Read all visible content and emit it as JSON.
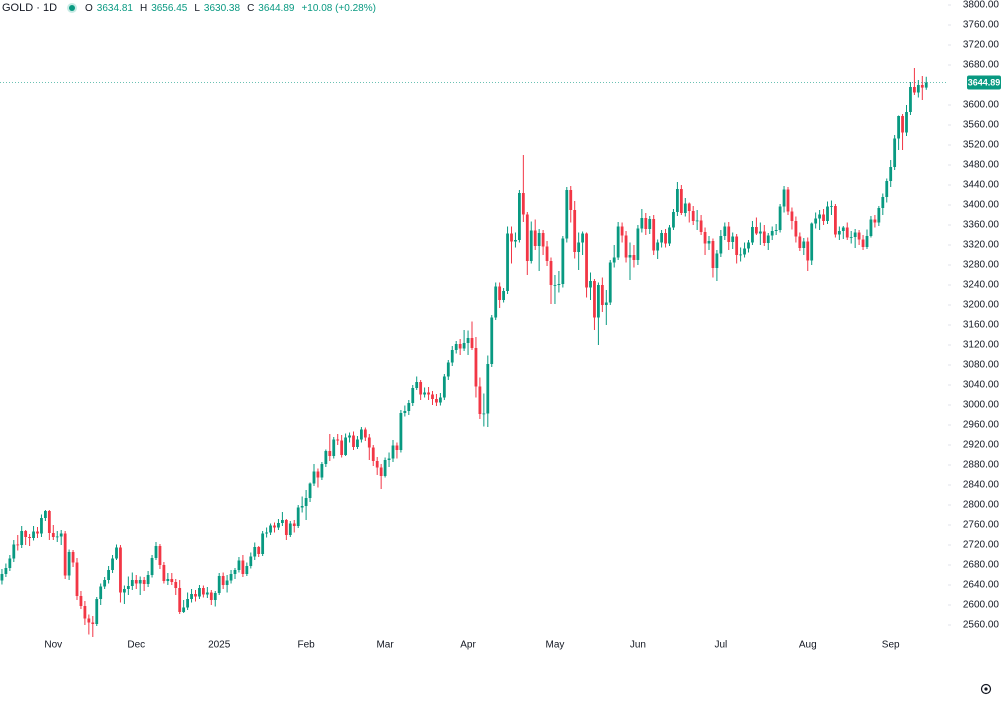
{
  "chart_data": {
    "type": "candlestick",
    "symbol": "GOLD · 1D",
    "ohlc_labels": [
      "O",
      "H",
      "L",
      "C"
    ],
    "change": "+10.08 (+0.28%)",
    "up_color": "#089981",
    "down_color": "#f23645",
    "ylim": [
      2540,
      3800
    ],
    "yticks": [
      {
        "value": 3800,
        "label": "3800.00"
      },
      {
        "value": 3760,
        "label": "3760.00"
      },
      {
        "value": 3720,
        "label": "3720.00"
      },
      {
        "value": 3680,
        "label": "3680.00"
      },
      {
        "value": 3600,
        "label": "3600.00"
      },
      {
        "value": 3560,
        "label": "3560.00"
      },
      {
        "value": 3520,
        "label": "3520.00"
      },
      {
        "value": 3480,
        "label": "3480.00"
      },
      {
        "value": 3440,
        "label": "3440.00"
      },
      {
        "value": 3400,
        "label": "3400.00"
      },
      {
        "value": 3360,
        "label": "3360.00"
      },
      {
        "value": 3320,
        "label": "3320.00"
      },
      {
        "value": 3280,
        "label": "3280.00"
      },
      {
        "value": 3240,
        "label": "3240.00"
      },
      {
        "value": 3200,
        "label": "3200.00"
      },
      {
        "value": 3160,
        "label": "3160.00"
      },
      {
        "value": 3120,
        "label": "3120.00"
      },
      {
        "value": 3080,
        "label": "3080.00"
      },
      {
        "value": 3040,
        "label": "3040.00"
      },
      {
        "value": 3000,
        "label": "3000.00"
      },
      {
        "value": 2960,
        "label": "2960.00"
      },
      {
        "value": 2920,
        "label": "2920.00"
      },
      {
        "value": 2880,
        "label": "2880.00"
      },
      {
        "value": 2840,
        "label": "2840.00"
      },
      {
        "value": 2800,
        "label": "2800.00"
      },
      {
        "value": 2760,
        "label": "2760.00"
      },
      {
        "value": 2720,
        "label": "2720.00"
      },
      {
        "value": 2680,
        "label": "2680.00"
      },
      {
        "value": 2640,
        "label": "2640.00"
      },
      {
        "value": 2600,
        "label": "2600.00"
      },
      {
        "value": 2560,
        "label": "2560.00"
      }
    ],
    "categories": [
      null,
      null,
      null,
      null,
      null,
      null,
      null,
      null,
      null,
      null,
      null,
      null,
      null,
      null,
      "Nov",
      null,
      null,
      null,
      null,
      null,
      null,
      null,
      null,
      null,
      null,
      null,
      null,
      null,
      null,
      null,
      null,
      null,
      null,
      null,
      null,
      "Dec",
      null,
      null,
      null,
      null,
      null,
      null,
      null,
      null,
      null,
      null,
      null,
      null,
      null,
      null,
      null,
      null,
      null,
      null,
      null,
      null,
      "2025",
      null,
      null,
      null,
      null,
      null,
      null,
      null,
      null,
      null,
      null,
      null,
      null,
      null,
      null,
      null,
      null,
      null,
      null,
      null,
      null,
      null,
      "Feb",
      null,
      null,
      null,
      null,
      null,
      null,
      null,
      null,
      null,
      null,
      null,
      null,
      null,
      null,
      null,
      null,
      null,
      null,
      null,
      "Mar",
      null,
      null,
      null,
      null,
      null,
      null,
      null,
      null,
      null,
      null,
      null,
      null,
      null,
      null,
      null,
      null,
      null,
      null,
      null,
      null,
      "Apr",
      null,
      null,
      null,
      null,
      null,
      null,
      null,
      null,
      null,
      null,
      null,
      null,
      null,
      null,
      null,
      null,
      null,
      null,
      null,
      null,
      null,
      "May",
      null,
      null,
      null,
      null,
      null,
      null,
      null,
      null,
      null,
      null,
      null,
      null,
      null,
      null,
      null,
      null,
      null,
      null,
      null,
      null,
      "Jun",
      null,
      null,
      null,
      null,
      null,
      null,
      null,
      null,
      null,
      null,
      null,
      null,
      null,
      null,
      null,
      null,
      null,
      null,
      null,
      null,
      "Jul",
      null,
      null,
      null,
      null,
      null,
      null,
      null,
      null,
      null,
      null,
      null,
      null,
      null,
      null,
      null,
      null,
      null,
      null,
      null,
      null,
      null,
      "Aug",
      null,
      null,
      null,
      null,
      null,
      null,
      null,
      null,
      null,
      null,
      null,
      null,
      null,
      null,
      null,
      null,
      null,
      null,
      null,
      null,
      "Sep",
      null,
      null,
      null,
      null,
      null,
      null,
      null,
      null,
      null
    ],
    "open": [
      2656,
      2649,
      2662,
      2674,
      2693,
      2721,
      2720,
      2748,
      2736,
      2734,
      2747,
      2743,
      2774,
      2788,
      2744,
      2736,
      2737,
      2743,
      2659,
      2706,
      2685,
      2618,
      2598,
      2573,
      2565,
      2562,
      2612,
      2637,
      2650,
      2670,
      2693,
      2715,
      2625,
      2632,
      2638,
      2650,
      2643,
      2650,
      2642,
      2660,
      2694,
      2718,
      2680,
      2648,
      2652,
      2646,
      2634,
      2586,
      2595,
      2612,
      2622,
      2617,
      2634,
      2621,
      2625,
      2610,
      2624,
      2658,
      2640,
      2649,
      2662,
      2670,
      2689,
      2662,
      2678,
      2697,
      2716,
      2702,
      2743,
      2745,
      2759,
      2755,
      2764,
      2770,
      2740,
      2763,
      2758,
      2795,
      2798,
      2814,
      2843,
      2867,
      2855,
      2882,
      2908,
      2898,
      2931,
      2929,
      2900,
      2935,
      2939,
      2916,
      2931,
      2951,
      2935,
      2915,
      2888,
      2875,
      2858,
      2890,
      2893,
      2919,
      2910,
      2984,
      2988,
      3004,
      3034,
      3046,
      3021,
      3025,
      3021,
      3012,
      3005,
      3015,
      3057,
      3085,
      3110,
      3122,
      3113,
      3124,
      3134,
      3114,
      3037,
      2982,
      2983,
      3082,
      3175,
      3237,
      3210,
      3228,
      3343,
      3327,
      3330,
      3424,
      3381,
      3288,
      3349,
      3318,
      3344,
      3317,
      3288,
      3240,
      3240,
      3242,
      3333,
      3430,
      3390,
      3306,
      3325,
      3343,
      3235,
      3248,
      3175,
      3240,
      3200,
      3205,
      3285,
      3295,
      3357,
      3339,
      3295,
      3300,
      3290,
      3353,
      3374,
      3352,
      3372,
      3309,
      3325,
      3344,
      3323,
      3355,
      3386,
      3432,
      3384,
      3403,
      3388,
      3368,
      3369,
      3346,
      3323,
      3328,
      3274,
      3303,
      3338,
      3357,
      3326,
      3337,
      3300,
      3301,
      3313,
      3325,
      3356,
      3343,
      3347,
      3324,
      3339,
      3348,
      3350,
      3397,
      3431,
      3387,
      3368,
      3337,
      3314,
      3327,
      3289,
      3363,
      3373,
      3381,
      3368,
      3397,
      3398,
      3341,
      3348,
      3355,
      3335,
      3336,
      3345,
      3331,
      3316,
      3338,
      3371,
      3365,
      3394,
      3416,
      3448,
      3476,
      3533,
      3578,
      3545,
      3586,
      3636,
      3625,
      3640,
      3634.81
    ],
    "high": [
      2666,
      2672,
      2683,
      2700,
      2730,
      2740,
      2758,
      2750,
      2742,
      2758,
      2756,
      2781,
      2790,
      2790,
      2760,
      2748,
      2750,
      2748,
      2711,
      2710,
      2694,
      2628,
      2608,
      2581,
      2578,
      2616,
      2643,
      2656,
      2678,
      2700,
      2721,
      2720,
      2639,
      2657,
      2665,
      2660,
      2657,
      2656,
      2668,
      2700,
      2726,
      2722,
      2686,
      2664,
      2664,
      2652,
      2650,
      2610,
      2625,
      2632,
      2630,
      2640,
      2639,
      2636,
      2630,
      2628,
      2664,
      2665,
      2660,
      2670,
      2674,
      2696,
      2700,
      2685,
      2705,
      2725,
      2718,
      2748,
      2755,
      2763,
      2765,
      2772,
      2786,
      2772,
      2768,
      2770,
      2800,
      2817,
      2830,
      2845,
      2882,
      2873,
      2886,
      2911,
      2942,
      2936,
      2942,
      2940,
      2943,
      2945,
      2947,
      2938,
      2956,
      2955,
      2942,
      2920,
      2896,
      2882,
      2895,
      2905,
      2930,
      2925,
      2990,
      2999,
      3010,
      3040,
      3057,
      3050,
      3035,
      3036,
      3028,
      3022,
      3024,
      3062,
      3090,
      3118,
      3128,
      3132,
      3150,
      3149,
      3167,
      3136,
      3055,
      3023,
      3099,
      3180,
      3245,
      3245,
      3234,
      3357,
      3357,
      3345,
      3430,
      3500,
      3386,
      3367,
      3371,
      3352,
      3350,
      3328,
      3295,
      3260,
      3268,
      3338,
      3436,
      3438,
      3408,
      3345,
      3347,
      3345,
      3265,
      3252,
      3245,
      3255,
      3230,
      3290,
      3320,
      3366,
      3365,
      3348,
      3325,
      3320,
      3360,
      3392,
      3384,
      3378,
      3380,
      3331,
      3350,
      3352,
      3360,
      3392,
      3446,
      3440,
      3414,
      3405,
      3398,
      3390,
      3380,
      3355,
      3338,
      3333,
      3310,
      3350,
      3365,
      3366,
      3345,
      3342,
      3315,
      3325,
      3330,
      3368,
      3375,
      3365,
      3360,
      3344,
      3357,
      3362,
      3402,
      3438,
      3436,
      3395,
      3377,
      3345,
      3334,
      3335,
      3365,
      3385,
      3390,
      3392,
      3407,
      3409,
      3402,
      3357,
      3358,
      3365,
      3348,
      3352,
      3350,
      3340,
      3351,
      3378,
      3380,
      3398,
      3423,
      3453,
      3490,
      3540,
      3579,
      3582,
      3600,
      3646,
      3674,
      3650,
      3658,
      3656.45
    ],
    "low": [
      2644,
      2641,
      2656,
      2668,
      2686,
      2709,
      2714,
      2720,
      2718,
      2729,
      2734,
      2736,
      2768,
      2730,
      2730,
      2726,
      2720,
      2652,
      2650,
      2676,
      2610,
      2592,
      2560,
      2541,
      2536,
      2558,
      2600,
      2632,
      2643,
      2664,
      2690,
      2605,
      2602,
      2620,
      2630,
      2632,
      2620,
      2628,
      2636,
      2655,
      2690,
      2672,
      2643,
      2640,
      2640,
      2620,
      2582,
      2584,
      2590,
      2605,
      2607,
      2612,
      2615,
      2614,
      2600,
      2597,
      2620,
      2632,
      2625,
      2643,
      2652,
      2665,
      2656,
      2658,
      2673,
      2690,
      2696,
      2698,
      2735,
      2740,
      2745,
      2750,
      2758,
      2730,
      2736,
      2745,
      2754,
      2785,
      2770,
      2806,
      2838,
      2835,
      2850,
      2876,
      2888,
      2893,
      2920,
      2895,
      2898,
      2925,
      2910,
      2912,
      2925,
      2928,
      2890,
      2878,
      2860,
      2832,
      2855,
      2876,
      2886,
      2893,
      2905,
      2977,
      2980,
      2998,
      3030,
      3010,
      3015,
      3010,
      3000,
      2998,
      2999,
      3010,
      3050,
      3078,
      3103,
      3100,
      3108,
      3100,
      3110,
      3015,
      2972,
      2957,
      2956,
      3076,
      3170,
      3194,
      3205,
      3222,
      3283,
      3315,
      3325,
      3366,
      3260,
      3283,
      3310,
      3268,
      3300,
      3278,
      3202,
      3202,
      3225,
      3235,
      3325,
      3365,
      3293,
      3270,
      3300,
      3215,
      3210,
      3150,
      3120,
      3186,
      3160,
      3200,
      3275,
      3290,
      3325,
      3285,
      3250,
      3275,
      3280,
      3345,
      3340,
      3342,
      3300,
      3292,
      3315,
      3315,
      3318,
      3350,
      3378,
      3380,
      3377,
      3365,
      3360,
      3350,
      3340,
      3300,
      3310,
      3255,
      3248,
      3296,
      3330,
      3310,
      3312,
      3283,
      3287,
      3295,
      3305,
      3320,
      3340,
      3320,
      3318,
      3310,
      3330,
      3340,
      3345,
      3385,
      3380,
      3351,
      3325,
      3308,
      3300,
      3268,
      3280,
      3353,
      3350,
      3360,
      3362,
      3380,
      3335,
      3330,
      3332,
      3330,
      3323,
      3314,
      3320,
      3310,
      3312,
      3335,
      3355,
      3358,
      3380,
      3405,
      3436,
      3470,
      3510,
      3510,
      3538,
      3580,
      3620,
      3615,
      3610,
      3630.38
    ],
    "close": [
      2649,
      2662,
      2674,
      2693,
      2721,
      2720,
      2748,
      2736,
      2734,
      2747,
      2743,
      2774,
      2788,
      2744,
      2736,
      2737,
      2743,
      2659,
      2706,
      2685,
      2618,
      2598,
      2573,
      2565,
      2562,
      2612,
      2637,
      2650,
      2670,
      2693,
      2715,
      2625,
      2632,
      2638,
      2650,
      2643,
      2650,
      2642,
      2660,
      2694,
      2718,
      2680,
      2648,
      2652,
      2646,
      2634,
      2586,
      2595,
      2612,
      2622,
      2617,
      2634,
      2621,
      2625,
      2610,
      2624,
      2658,
      2640,
      2649,
      2662,
      2670,
      2689,
      2662,
      2678,
      2697,
      2716,
      2702,
      2743,
      2745,
      2759,
      2755,
      2764,
      2770,
      2740,
      2763,
      2758,
      2795,
      2798,
      2814,
      2843,
      2867,
      2855,
      2882,
      2908,
      2898,
      2931,
      2929,
      2900,
      2935,
      2939,
      2916,
      2931,
      2951,
      2935,
      2915,
      2888,
      2875,
      2858,
      2890,
      2893,
      2919,
      2910,
      2984,
      2988,
      3004,
      3034,
      3046,
      3021,
      3025,
      3021,
      3012,
      3005,
      3015,
      3057,
      3085,
      3110,
      3122,
      3113,
      3124,
      3134,
      3114,
      3037,
      2982,
      2983,
      3082,
      3175,
      3237,
      3210,
      3228,
      3343,
      3327,
      3330,
      3424,
      3381,
      3288,
      3349,
      3318,
      3344,
      3317,
      3288,
      3240,
      3240,
      3242,
      3333,
      3430,
      3390,
      3306,
      3325,
      3343,
      3235,
      3248,
      3175,
      3240,
      3200,
      3205,
      3285,
      3295,
      3357,
      3339,
      3295,
      3300,
      3290,
      3353,
      3374,
      3352,
      3372,
      3309,
      3325,
      3344,
      3323,
      3355,
      3386,
      3432,
      3384,
      3403,
      3388,
      3368,
      3369,
      3346,
      3323,
      3328,
      3274,
      3303,
      3338,
      3357,
      3326,
      3337,
      3300,
      3301,
      3313,
      3325,
      3356,
      3343,
      3347,
      3324,
      3339,
      3348,
      3350,
      3397,
      3431,
      3387,
      3368,
      3337,
      3314,
      3327,
      3289,
      3363,
      3373,
      3381,
      3368,
      3397,
      3398,
      3341,
      3348,
      3355,
      3335,
      3336,
      3345,
      3331,
      3316,
      3338,
      3371,
      3365,
      3394,
      3416,
      3448,
      3476,
      3533,
      3578,
      3545,
      3586,
      3636,
      3625,
      3640,
      3634.81,
      3644.89
    ]
  }
}
